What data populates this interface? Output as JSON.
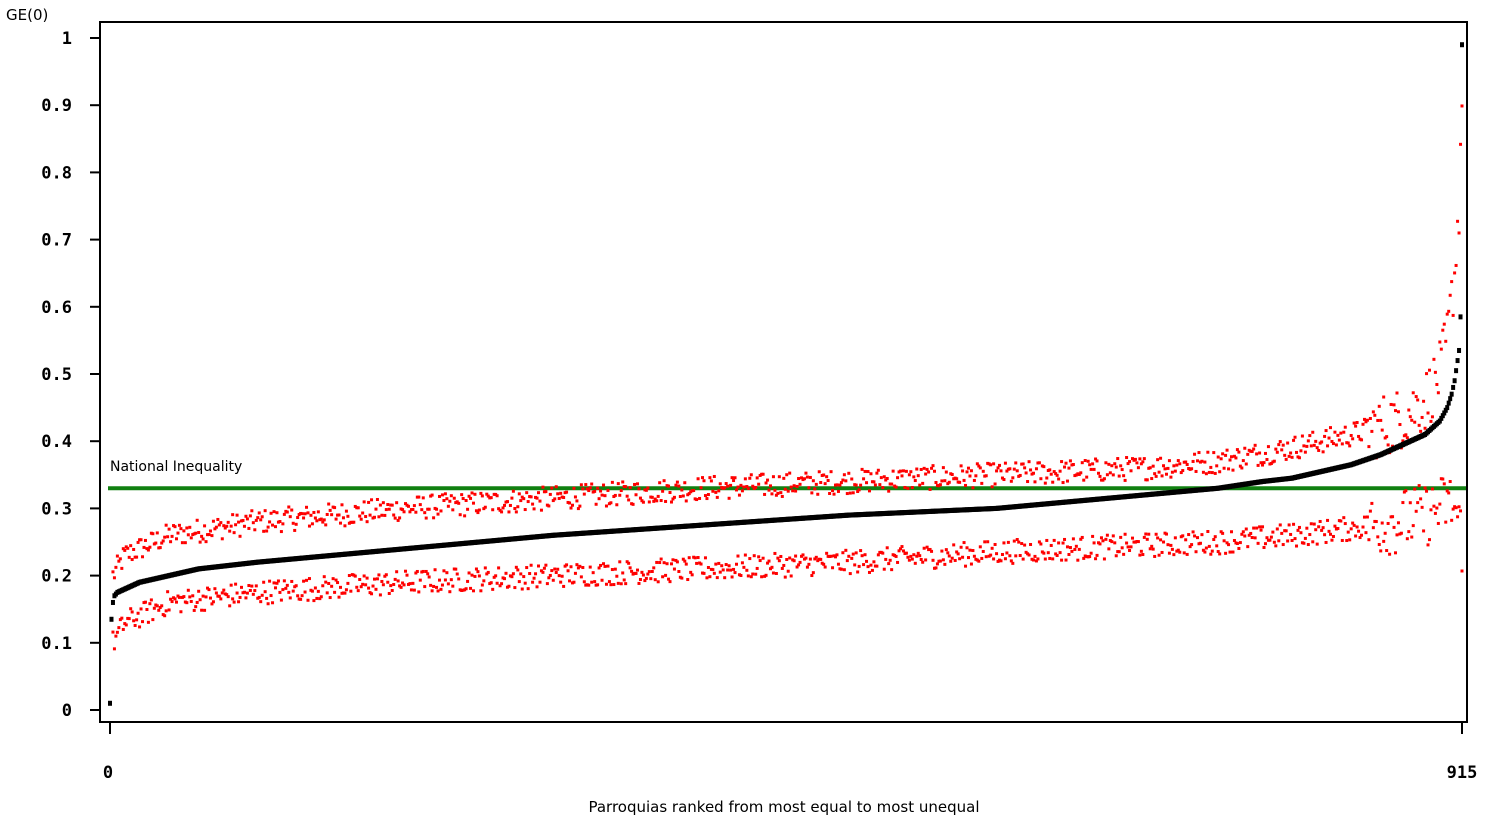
{
  "chart_data": {
    "type": "scatter",
    "title": "",
    "ylabel": "GE(0)",
    "xlabel": "Parroquias ranked from most equal to most unequal",
    "xlim": [
      0,
      915
    ],
    "ylim": [
      0,
      1
    ],
    "x_ticks": [
      0,
      915
    ],
    "x_tick_labels": [
      "0",
      "915"
    ],
    "y_ticks": [
      0,
      0.1,
      0.2,
      0.3,
      0.4,
      0.5,
      0.6,
      0.7,
      0.8,
      0.9,
      1
    ],
    "y_tick_labels": [
      "0",
      "0.1",
      "0.2",
      "0.3",
      "0.4",
      "0.5",
      "0.6",
      "0.7",
      "0.8",
      "0.9",
      "1"
    ],
    "grid": false,
    "legend": "none",
    "reference_line": {
      "label": "National Inequality",
      "y": 0.33,
      "color": "#118011"
    },
    "series": [
      {
        "color": "#000000",
        "description_points": "ranked GE(0) estimate per parroquia",
        "x": [
          0,
          1,
          2,
          3,
          5,
          10,
          20,
          40,
          60,
          100,
          150,
          200,
          300,
          400,
          500,
          600,
          650,
          700,
          750,
          780,
          800,
          820,
          840,
          860,
          870,
          880,
          890,
          895,
          900,
          905,
          908,
          910,
          912,
          913,
          914,
          915
        ],
        "y": [
          0.01,
          0.135,
          0.16,
          0.17,
          0.175,
          0.18,
          0.19,
          0.2,
          0.21,
          0.22,
          0.23,
          0.24,
          0.26,
          0.275,
          0.29,
          0.3,
          0.31,
          0.32,
          0.33,
          0.34,
          0.345,
          0.355,
          0.365,
          0.38,
          0.39,
          0.4,
          0.41,
          0.42,
          0.43,
          0.45,
          0.47,
          0.49,
          0.52,
          0.535,
          0.585,
          0.99
        ]
      },
      {
        "color": "#ff0000",
        "description_points": "upper confidence bound",
        "x": [
          2,
          10,
          40,
          100,
          200,
          300,
          400,
          500,
          600,
          700,
          750,
          800,
          840,
          870,
          890,
          900,
          905,
          910,
          913,
          915
        ],
        "y": [
          0.2,
          0.23,
          0.26,
          0.28,
          0.3,
          0.315,
          0.33,
          0.34,
          0.35,
          0.36,
          0.37,
          0.39,
          0.41,
          0.43,
          0.46,
          0.5,
          0.55,
          0.65,
          0.75,
          0.92
        ]
      },
      {
        "color": "#ff0000",
        "description_points": "lower confidence bound",
        "x": [
          2,
          10,
          40,
          100,
          200,
          300,
          400,
          500,
          600,
          700,
          750,
          800,
          840,
          870,
          890,
          900,
          905,
          910,
          913,
          915
        ],
        "y": [
          0.1,
          0.13,
          0.16,
          0.175,
          0.19,
          0.2,
          0.21,
          0.22,
          0.235,
          0.245,
          0.25,
          0.26,
          0.27,
          0.28,
          0.29,
          0.3,
          0.31,
          0.3,
          0.28,
          0.25
        ]
      }
    ]
  }
}
